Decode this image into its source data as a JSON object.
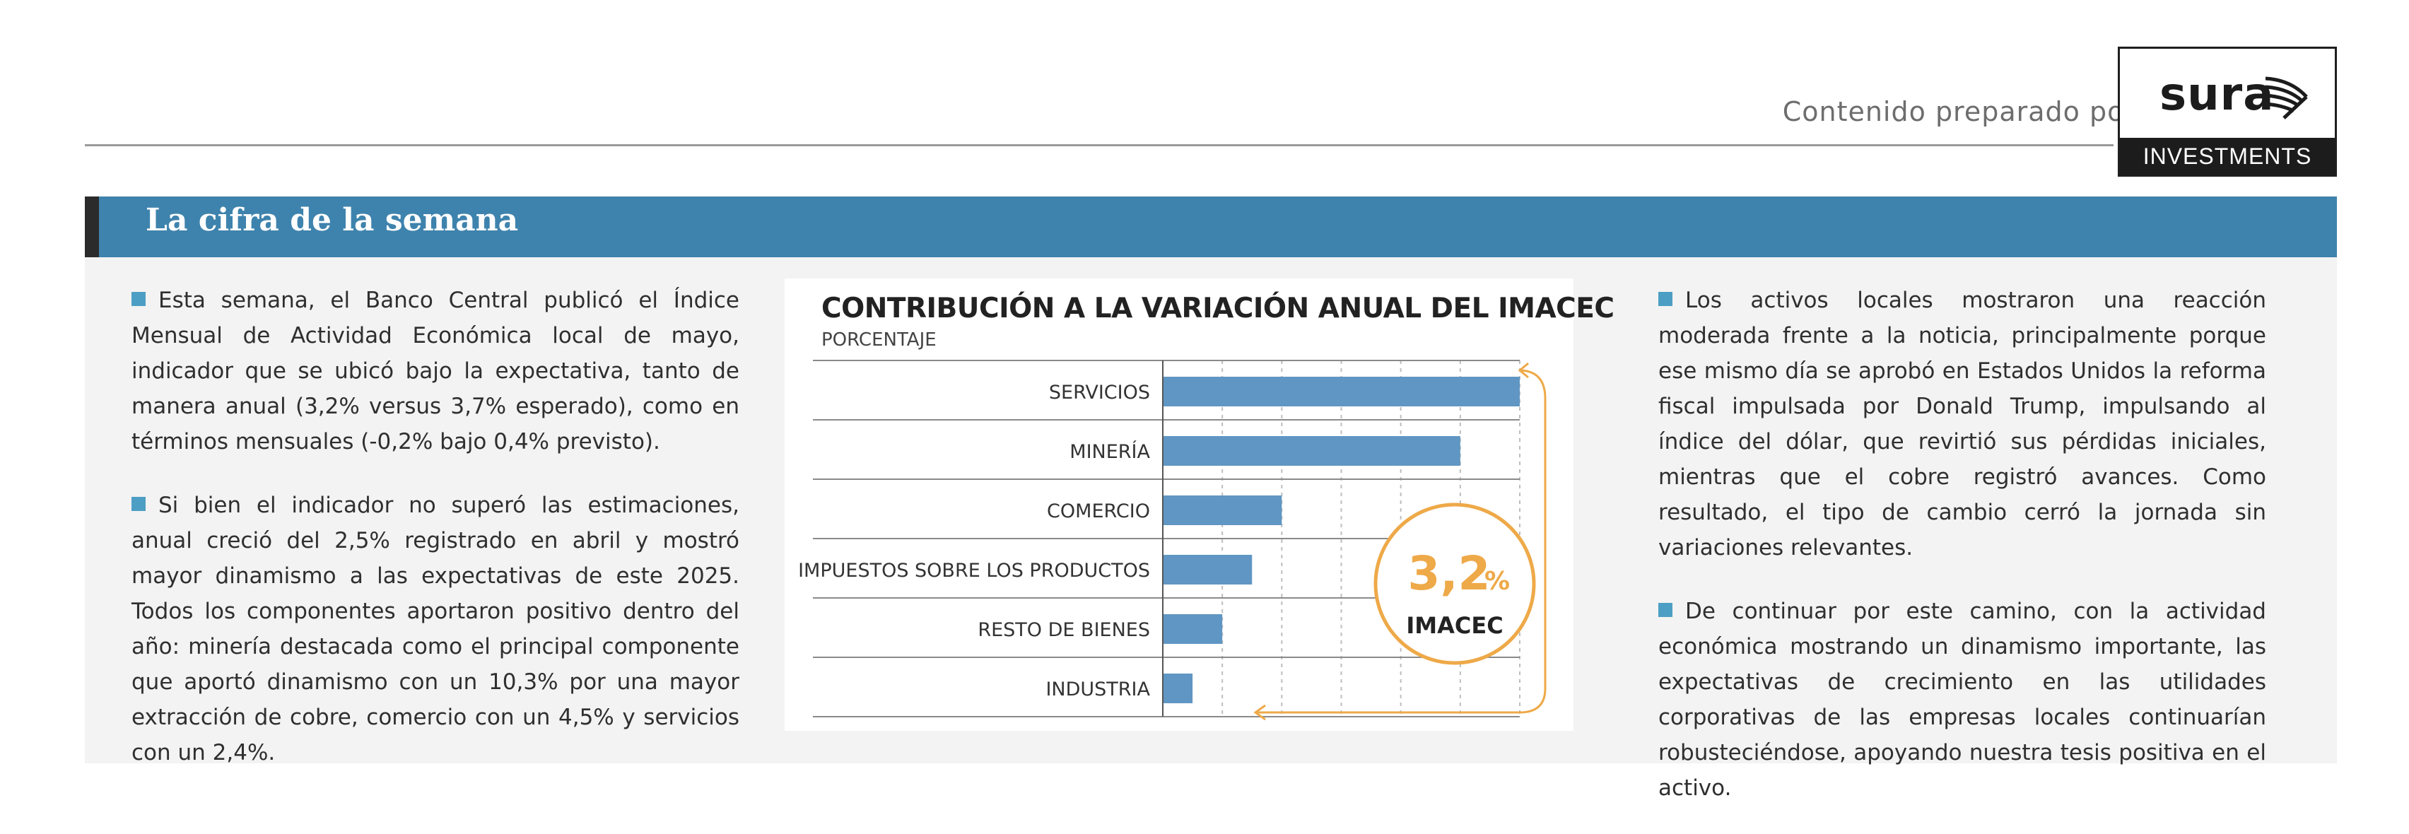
{
  "header": {
    "credit": "Contenido preparado por",
    "logo_word": "sura",
    "logo_band": "INVESTMENTS"
  },
  "section": {
    "title": "La cifra de la semana"
  },
  "left_column": {
    "p1": "Esta semana, el Banco Central publicó el Índice Mensual de Actividad Económica local de mayo, indicador que se ubicó bajo la expectativa, tanto de manera anual (3,2% versus 3,7% esperado), como en términos mensuales (-0,2% bajo 0,4% previsto).",
    "p2": "Si bien el indicador no superó las estimaciones, anual creció del 2,5% registrado en abril y mostró mayor dinamismo a las expectativas de este 2025. Todos los componentes aportaron positivo dentro del año: minería destacada como el principal componente que aportó dinamismo con un 10,3% por una mayor extracción de cobre, comercio con un 4,5% y servicios con un 2,4%."
  },
  "right_column": {
    "p1": "Los activos locales mostraron una reacción moderada frente a la noticia, principalmente porque ese mismo día se aprobó en Estados Unidos la reforma fiscal impulsada por Donald Trump, impulsando al índice del dólar, que revirtió sus pérdidas iniciales, mientras que el cobre registró avances. Como resultado, el tipo de cambio cerró la jornada sin variaciones relevantes.",
    "p2": "De continuar por este camino, con la actividad económica mostrando un dinamismo importante, las expectativas de crecimiento en las utilidades corporativas de las empresas locales continuarían robusteciéndose, apoyando nuestra tesis positiva en el activo."
  },
  "colors": {
    "band": "#3e83ad",
    "bar": "#6096c3",
    "accent_orange": "#eea948",
    "bullet": "#4d9ec4"
  },
  "chart_data": {
    "type": "bar",
    "orientation": "horizontal",
    "title": "CONTRIBUCIÓN A LA VARIACIÓN ANUAL DEL IMACEC",
    "subtitle": "PORCENTAJE",
    "categories": [
      "SERVICIOS",
      "MINERÍA",
      "COMERCIO",
      "IMPUESTOS SOBRE LOS PRODUCTOS",
      "RESTO DE BIENES",
      "INDUSTRIA"
    ],
    "values": [
      1.2,
      1.0,
      0.4,
      0.3,
      0.2,
      0.1
    ],
    "xlim": [
      0,
      1.2
    ],
    "grid": true,
    "annotation": {
      "value": "3,2",
      "unit": "%",
      "label": "IMACEC"
    }
  }
}
